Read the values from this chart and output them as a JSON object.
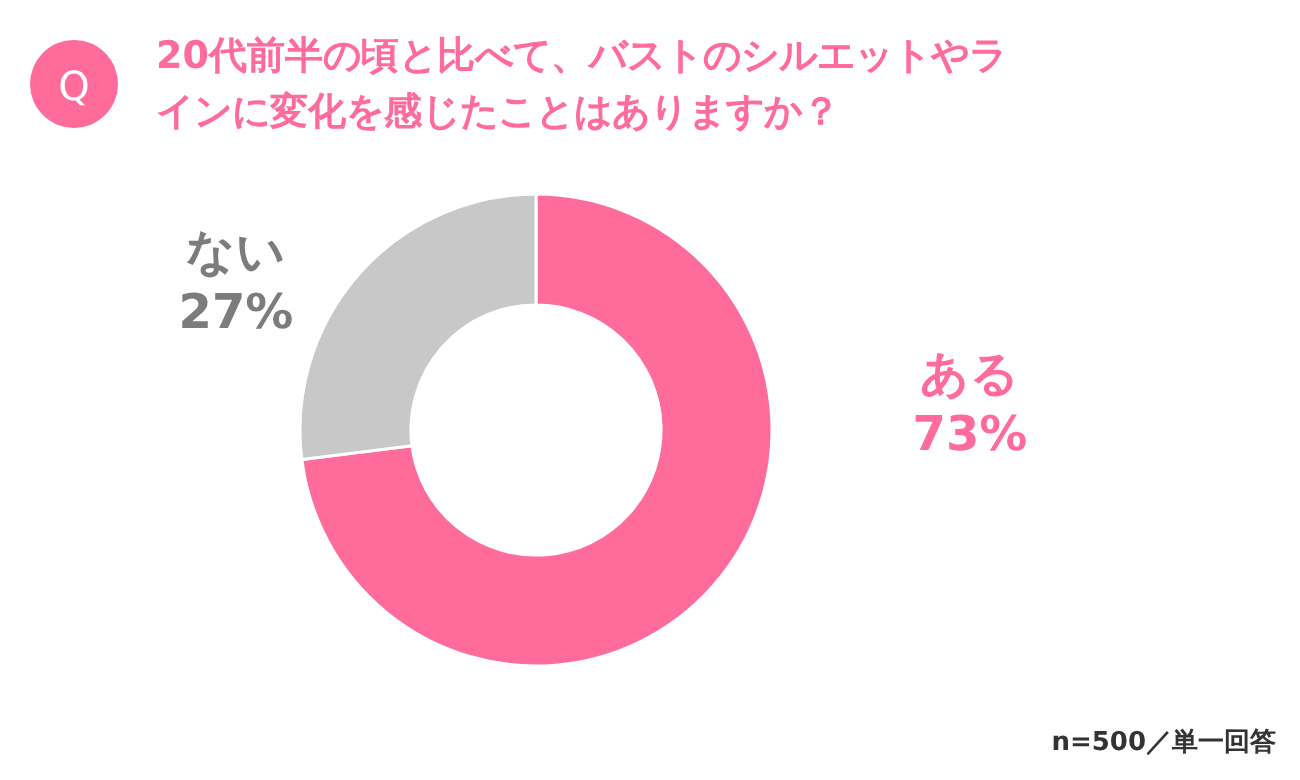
{
  "chart_data": {
    "type": "donut",
    "title": "20代前半の頃と比べて、バストのシルエットやラインに変化を感じたことはありますか？",
    "categories": [
      "ある",
      "ない"
    ],
    "values": [
      73,
      27
    ],
    "value_labels": [
      "73%",
      "27%"
    ],
    "colors": [
      "#ff6b9a",
      "#c8c8c8"
    ],
    "annotations": [
      "Q",
      "n=500／単一回答"
    ]
  }
}
